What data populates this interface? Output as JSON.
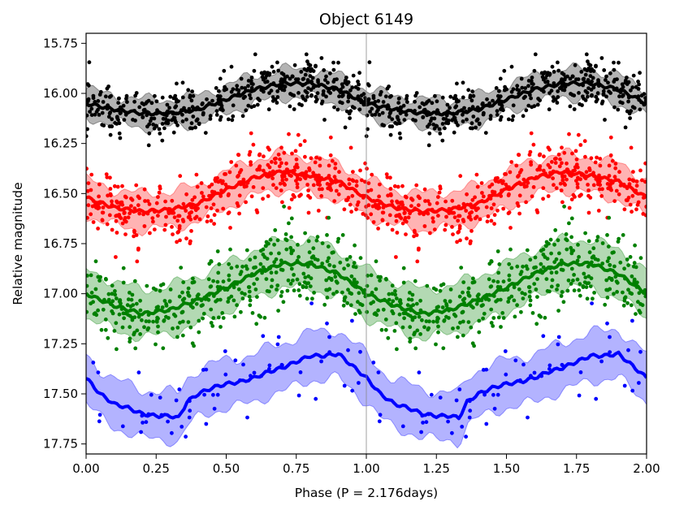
{
  "chart_data": {
    "type": "scatter",
    "title": "Object 6149",
    "xlabel": "Phase (P = 2.176days)",
    "ylabel": "Relative magnitude",
    "xlim": [
      0.0,
      2.0
    ],
    "ylim": [
      17.8,
      15.7
    ],
    "y_inverted": true,
    "grid": false,
    "x_ticks": [
      0.0,
      0.25,
      0.5,
      0.75,
      1.0,
      1.25,
      1.5,
      1.75,
      2.0
    ],
    "x_tick_labels": [
      "0.00",
      "0.25",
      "0.50",
      "0.75",
      "1.00",
      "1.25",
      "1.50",
      "1.75",
      "2.00"
    ],
    "y_ticks": [
      15.75,
      16.0,
      16.25,
      16.5,
      16.75,
      17.0,
      17.25,
      17.5,
      17.75
    ],
    "y_tick_labels": [
      "15.75",
      "16.00",
      "16.25",
      "16.50",
      "16.75",
      "17.00",
      "17.25",
      "17.50",
      "17.75"
    ],
    "series": [
      {
        "color": "#000000",
        "band_color": "#808080",
        "mean_curve": {
          "phase": [
            0.0,
            0.1,
            0.2,
            0.3,
            0.4,
            0.5,
            0.6,
            0.7,
            0.8,
            0.9,
            1.0
          ],
          "magnitude": [
            16.05,
            16.08,
            16.1,
            16.1,
            16.08,
            16.03,
            15.98,
            15.95,
            15.95,
            15.98,
            16.05
          ]
        },
        "band_half_width": 0.07,
        "point_scatter": 0.06,
        "points_per_cycle": 400
      },
      {
        "color": "#ff0000",
        "band_color": "#ff8080",
        "mean_curve": {
          "phase": [
            0.0,
            0.1,
            0.2,
            0.3,
            0.4,
            0.5,
            0.6,
            0.7,
            0.8,
            0.9,
            1.0
          ],
          "magnitude": [
            16.52,
            16.57,
            16.59,
            16.58,
            16.55,
            16.48,
            16.42,
            16.39,
            16.41,
            16.44,
            16.52
          ]
        },
        "band_half_width": 0.09,
        "point_scatter": 0.08,
        "points_per_cycle": 400
      },
      {
        "color": "#008000",
        "band_color": "#80c080",
        "mean_curve": {
          "phase": [
            0.0,
            0.1,
            0.2,
            0.3,
            0.4,
            0.5,
            0.6,
            0.7,
            0.8,
            0.9,
            1.0
          ],
          "magnitude": [
            17.0,
            17.06,
            17.1,
            17.08,
            17.03,
            16.97,
            16.9,
            16.85,
            16.85,
            16.9,
            17.0
          ]
        },
        "band_half_width": 0.12,
        "point_scatter": 0.1,
        "points_per_cycle": 400
      },
      {
        "color": "#0000ff",
        "band_color": "#8080ff",
        "mean_curve": {
          "phase": [
            0.0,
            0.05,
            0.1,
            0.15,
            0.2,
            0.25,
            0.3,
            0.33,
            0.36,
            0.4,
            0.45,
            0.5,
            0.55,
            0.6,
            0.65,
            0.7,
            0.75,
            0.8,
            0.85,
            0.9,
            0.95,
            1.0
          ],
          "magnitude": [
            17.42,
            17.5,
            17.55,
            17.57,
            17.6,
            17.61,
            17.61,
            17.62,
            17.54,
            17.5,
            17.47,
            17.45,
            17.44,
            17.42,
            17.39,
            17.37,
            17.34,
            17.31,
            17.31,
            17.3,
            17.36,
            17.42
          ]
        },
        "band_half_width": 0.12,
        "point_scatter": 0.1,
        "points_per_cycle": 60
      }
    ]
  }
}
